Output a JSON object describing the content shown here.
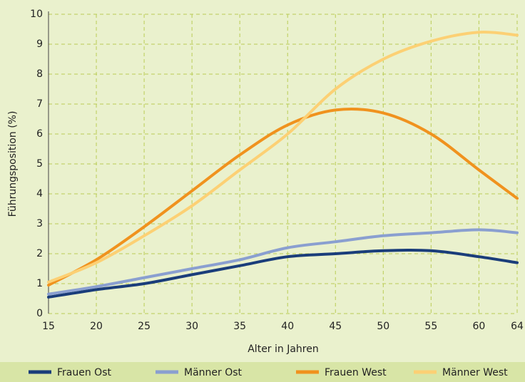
{
  "chart_data": {
    "type": "line",
    "x": [
      15,
      20,
      25,
      30,
      35,
      40,
      45,
      50,
      55,
      60,
      64
    ],
    "xlim": [
      15,
      64
    ],
    "xticks": [
      15,
      20,
      25,
      30,
      35,
      40,
      45,
      50,
      55,
      60,
      64
    ],
    "ylim": [
      0,
      10
    ],
    "yticks": [
      0,
      1,
      2,
      3,
      4,
      5,
      6,
      7,
      8,
      9,
      10
    ],
    "xlabel": "Alter in Jahren",
    "ylabel": "Führungsposition (%)",
    "grid": true,
    "series": [
      {
        "name": "Frauen Ost",
        "color": "#1a3d7a",
        "values": [
          0.55,
          0.8,
          1.0,
          1.3,
          1.6,
          1.9,
          2.0,
          2.1,
          2.1,
          1.9,
          1.7
        ]
      },
      {
        "name": "Männer Ost",
        "color": "#8a9fd0",
        "values": [
          0.65,
          0.9,
          1.2,
          1.5,
          1.8,
          2.2,
          2.4,
          2.6,
          2.7,
          2.8,
          2.7
        ]
      },
      {
        "name": "Frauen West",
        "color": "#f0921e",
        "values": [
          0.95,
          1.8,
          2.9,
          4.1,
          5.3,
          6.3,
          6.8,
          6.7,
          6.0,
          4.8,
          3.85
        ]
      },
      {
        "name": "Männer West",
        "color": "#fcd074",
        "values": [
          1.05,
          1.7,
          2.6,
          3.6,
          4.8,
          6.0,
          7.5,
          8.5,
          9.1,
          9.4,
          9.3
        ]
      }
    ]
  }
}
